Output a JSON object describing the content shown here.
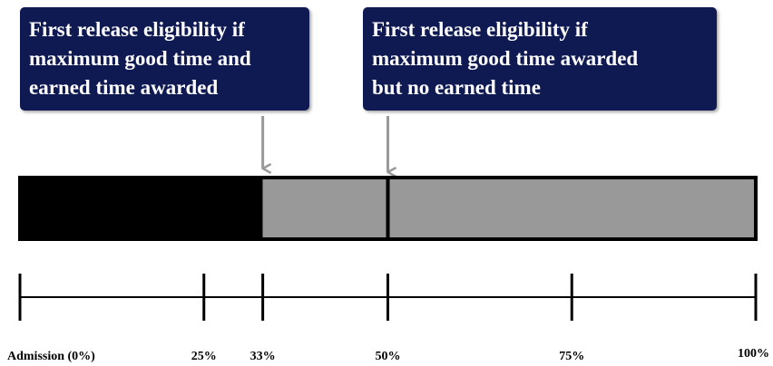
{
  "callouts": {
    "left": [
      "First release eligibility if",
      "maximum good time and",
      "earned time awarded"
    ],
    "right": [
      "First release eligibility if",
      "maximum good time awarded",
      "but no earned time"
    ]
  },
  "bar": {
    "served_fraction": 0.33,
    "marker_fraction": 0.5,
    "colors": {
      "served": "#000000",
      "remaining": "#999999",
      "arrow": "#999999",
      "callout": "#101a52"
    }
  },
  "ticks": [
    {
      "label": "Admission (0%)",
      "value": 0
    },
    {
      "label": "25%",
      "value": 25
    },
    {
      "label": "33%",
      "value": 33
    },
    {
      "label": "50%",
      "value": 50
    },
    {
      "label": "75%",
      "value": 75
    },
    {
      "label": "100%",
      "value": 100
    }
  ]
}
